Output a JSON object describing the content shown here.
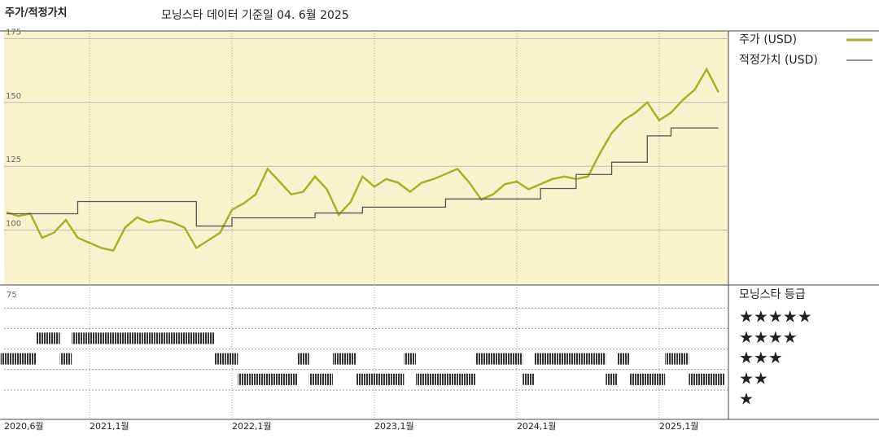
{
  "chart_data": {
    "type": "line",
    "title": "주가/적정가치",
    "subtitle": "모닝스타 데이터 기준일 04. 6월 2025",
    "x": [
      "2020-06",
      "2020-07",
      "2020-08",
      "2020-09",
      "2020-10",
      "2020-11",
      "2020-12",
      "2021-01",
      "2021-02",
      "2021-03",
      "2021-04",
      "2021-05",
      "2021-06",
      "2021-07",
      "2021-08",
      "2021-09",
      "2021-10",
      "2021-11",
      "2021-12",
      "2022-01",
      "2022-02",
      "2022-03",
      "2022-04",
      "2022-05",
      "2022-06",
      "2022-07",
      "2022-08",
      "2022-09",
      "2022-10",
      "2022-11",
      "2022-12",
      "2023-01",
      "2023-02",
      "2023-03",
      "2023-04",
      "2023-05",
      "2023-06",
      "2023-07",
      "2023-08",
      "2023-09",
      "2023-10",
      "2023-11",
      "2023-12",
      "2024-01",
      "2024-02",
      "2024-03",
      "2024-04",
      "2024-05",
      "2024-06",
      "2024-07",
      "2024-08",
      "2024-09",
      "2024-10",
      "2024-11",
      "2024-12",
      "2025-01",
      "2025-02",
      "2025-03",
      "2025-04",
      "2025-05",
      "2025-06"
    ],
    "series": [
      {
        "name": "주가 (USD)",
        "color": "#a9b12b",
        "values": [
          107,
          105.5,
          106.5,
          97,
          99,
          104,
          97,
          95,
          93,
          92,
          101,
          105,
          103,
          104,
          103,
          101,
          93,
          96,
          99,
          108,
          110.5,
          114,
          124,
          119,
          114,
          115,
          121,
          116,
          106,
          111,
          121,
          117,
          120,
          118.6,
          115,
          118.6,
          120,
          122,
          124,
          118.6,
          112,
          114,
          118,
          119,
          116,
          118,
          120,
          121,
          120,
          121,
          130,
          138,
          143,
          146,
          150,
          143,
          146,
          151,
          155,
          163,
          154
        ]
      },
      {
        "name": "적정가치 (USD)",
        "color": "#555555",
        "values": [
          106.4,
          106.4,
          106.4,
          106.4,
          106.4,
          106.4,
          111.2,
          111.2,
          111.2,
          111.2,
          111.2,
          111.2,
          111.2,
          111.2,
          111.2,
          111.2,
          101.6,
          101.6,
          101.6,
          104.8,
          104.8,
          104.8,
          104.8,
          104.8,
          104.8,
          104.8,
          106.7,
          106.7,
          106.7,
          106.7,
          109,
          109,
          109,
          109,
          109,
          109,
          109,
          112.2,
          112.2,
          112.2,
          112.2,
          112.2,
          112.2,
          112.2,
          112.2,
          116.3,
          116.3,
          116.3,
          121.8,
          121.8,
          121.8,
          126.6,
          126.6,
          126.6,
          136.9,
          136.9,
          140,
          140,
          140,
          140,
          140
        ]
      }
    ],
    "ylim": [
      78.5,
      178
    ],
    "yticks": [
      100,
      125,
      150,
      175
    ],
    "xticks": [
      {
        "value": "2020-06",
        "label": "2020,6월"
      },
      {
        "value": "2021-01",
        "label": "2021,1월"
      },
      {
        "value": "2022-01",
        "label": "2022,1월"
      },
      {
        "value": "2023-01",
        "label": "2023,1월"
      },
      {
        "value": "2024-01",
        "label": "2024,1월"
      },
      {
        "value": "2025-01",
        "label": "2025,1월"
      }
    ],
    "grid": true,
    "background": "#f8f3cc",
    "rating": {
      "title": "모닝스타 등급",
      "panel_label": "75",
      "color": "#333333",
      "levels": [
        {
          "value": 5,
          "label": "★★★★★"
        },
        {
          "value": 4,
          "label": "★★★★"
        },
        {
          "value": 3,
          "label": "★★★"
        },
        {
          "value": 2,
          "label": "★★"
        },
        {
          "value": 1,
          "label": "★"
        }
      ],
      "values": [
        3,
        3,
        3,
        4,
        4,
        3,
        4,
        4,
        4,
        4,
        4,
        4,
        4,
        4,
        4,
        4,
        4,
        4,
        3,
        3,
        2,
        2,
        2,
        2,
        2,
        3,
        2,
        2,
        3,
        3,
        2,
        2,
        2,
        2,
        3,
        2,
        2,
        2,
        2,
        2,
        3,
        3,
        3,
        3,
        2,
        3,
        3,
        3,
        3,
        3,
        3,
        2,
        3,
        2,
        2,
        2,
        3,
        3,
        2,
        2,
        2
      ]
    }
  }
}
